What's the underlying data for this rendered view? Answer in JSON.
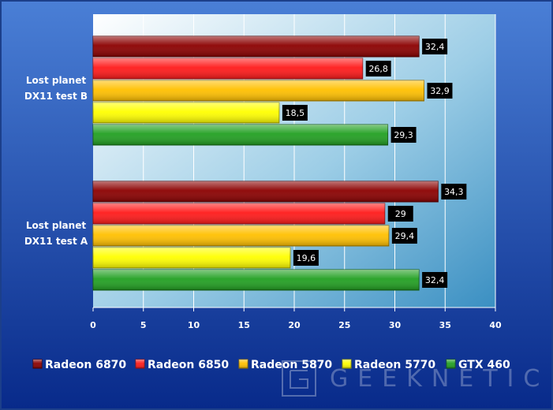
{
  "chart_data": {
    "type": "bar",
    "orientation": "horizontal",
    "categories": [
      "Lost planet DX11 test B",
      "Lost planet DX11 test A"
    ],
    "category_lines": [
      [
        "Lost planet",
        "DX11 test B"
      ],
      [
        "Lost planet",
        "DX11 test A"
      ]
    ],
    "series": [
      {
        "name": "Radeon 6870",
        "color": "#8b0000",
        "values": [
          32.4,
          34.3
        ],
        "labels": [
          "32,4",
          "34,3"
        ]
      },
      {
        "name": "Radeon 6850",
        "color": "#ff1a1a",
        "values": [
          26.8,
          29.0
        ],
        "labels": [
          "26,8",
          "29"
        ]
      },
      {
        "name": "Radeon 5870",
        "color": "#ffc000",
        "values": [
          32.9,
          29.4
        ],
        "labels": [
          "32,9",
          "29,4"
        ]
      },
      {
        "name": "Radeon 5770",
        "color": "#ffff00",
        "values": [
          18.5,
          19.6
        ],
        "labels": [
          "18,5",
          "19,6"
        ]
      },
      {
        "name": "GTX 460",
        "color": "#22a022",
        "values": [
          29.3,
          32.4
        ],
        "labels": [
          "29,3",
          "32,4"
        ]
      }
    ],
    "xlim": [
      0,
      40
    ],
    "xticks": [
      0,
      5,
      10,
      15,
      20,
      25,
      30,
      35,
      40
    ],
    "grid": true,
    "legend_position": "bottom",
    "title": "",
    "xlabel": "",
    "ylabel": ""
  },
  "watermark": {
    "text": "GEEKNETIC",
    "logo": "geeknetic-logo"
  },
  "colors": {
    "background_top": "#4a7fd6",
    "background_bottom": "#082a8a",
    "plot_left": "#ffffff",
    "plot_right": "#3f96c8"
  }
}
